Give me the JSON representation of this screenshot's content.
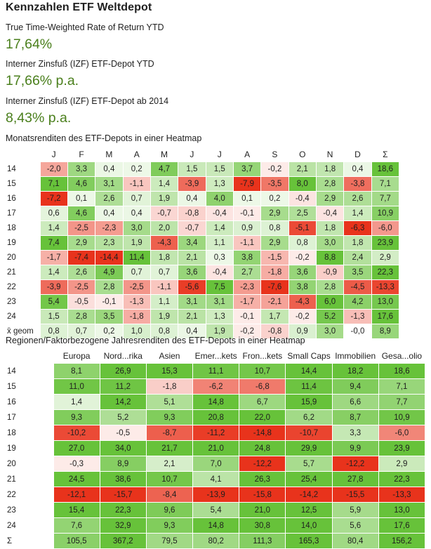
{
  "title": "Kennzahlen ETF Weltdepot",
  "metrics": [
    {
      "label": "True Time-Weighted Rate of Return YTD",
      "value": "17,64%"
    },
    {
      "label": "Interner Zinsfuß (IZF) ETF-Depot YTD",
      "value": "17,66% p.a."
    },
    {
      "label": "Interner Zinsfuß (IZF) ETF-Depot ab 2014",
      "value": "8,43% p.a."
    }
  ],
  "colors": {
    "positive_strong": "#67c23a",
    "positive_light": "#ffffff",
    "negative_strong": "#e8331c",
    "negative_light": "#ffffff",
    "value_text": "#4a7f1c"
  },
  "chart_data": [
    {
      "type": "heatmap",
      "title": "Monatsrenditen des ETF-Depots in einer Heatmap",
      "columns": [
        "J",
        "F",
        "M",
        "A",
        "M",
        "J",
        "J",
        "A",
        "S",
        "O",
        "N",
        "D",
        "Σ"
      ],
      "rows": [
        "14",
        "15",
        "16",
        "17",
        "18",
        "19",
        "20",
        "21",
        "22",
        "23",
        "24",
        "x̄ geom"
      ],
      "values": [
        [
          "-2,0",
          "3,3",
          "0,4",
          "0,2",
          "4,7",
          "1,5",
          "1,5",
          "3,7",
          "-0,2",
          "2,1",
          "1,8",
          "0,4",
          "18,6"
        ],
        [
          "7,1",
          "4,6",
          "3,1",
          "-1,1",
          "1,4",
          "-3,9",
          "1,3",
          "-7,9",
          "-3,5",
          "8,0",
          "2,8",
          "-3,8",
          "7,1"
        ],
        [
          "-7,2",
          "0,1",
          "2,6",
          "0,7",
          "1,9",
          "0,4",
          "4,0",
          "0,1",
          "0,2",
          "-0,4",
          "2,9",
          "2,6",
          "7,7"
        ],
        [
          "0,6",
          "4,6",
          "0,4",
          "0,4",
          "-0,7",
          "-0,8",
          "-0,4",
          "-0,1",
          "2,9",
          "2,5",
          "-0,4",
          "1,4",
          "10,9"
        ],
        [
          "1,4",
          "-2,5",
          "-2,3",
          "3,0",
          "2,0",
          "-0,7",
          "1,4",
          "0,9",
          "0,8",
          "-5,1",
          "1,8",
          "-6,3",
          "-6,0"
        ],
        [
          "7,4",
          "2,9",
          "2,3",
          "1,9",
          "-4,3",
          "3,4",
          "1,1",
          "-1,1",
          "2,9",
          "0,8",
          "3,0",
          "1,8",
          "23,9"
        ],
        [
          "-1,7",
          "-7,4",
          "-14,4",
          "11,4",
          "1,8",
          "2,1",
          "0,3",
          "3,8",
          "-1,5",
          "-0,2",
          "8,8",
          "2,4",
          "2,9"
        ],
        [
          "1,4",
          "2,6",
          "4,9",
          "0,7",
          "0,7",
          "3,6",
          "-0,4",
          "2,7",
          "-1,8",
          "3,6",
          "-0,9",
          "3,5",
          "22,3"
        ],
        [
          "-3,9",
          "-2,5",
          "2,8",
          "-2,5",
          "-1,1",
          "-5,6",
          "7,5",
          "-2,3",
          "-7,6",
          "3,8",
          "2,8",
          "-4,5",
          "-13,3"
        ],
        [
          "5,4",
          "-0,5",
          "-0,1",
          "-1,3",
          "1,1",
          "3,1",
          "3,1",
          "-1,7",
          "-2,1",
          "-4,3",
          "6,0",
          "4,2",
          "13,0"
        ],
        [
          "1,5",
          "2,8",
          "3,5",
          "-1,8",
          "1,9",
          "2,1",
          "1,3",
          "-0,1",
          "1,7",
          "-0,2",
          "5,2",
          "-1,3",
          "17,6"
        ],
        [
          "0,8",
          "0,7",
          "0,2",
          "1,0",
          "0,8",
          "0,4",
          "1,9",
          "-0,2",
          "-0,8",
          "0,9",
          "3,0",
          "-0,0",
          "8,9"
        ]
      ]
    },
    {
      "type": "heatmap",
      "title": "Regionen/Faktorbezogene Jahresrenditen des ETF-Depots in einer Heatmap",
      "columns": [
        "Europa",
        "Nord...rika",
        "Asien",
        "Emer...kets",
        "Fron...kets",
        "Small Caps",
        "Immobilien",
        "Gesa...olio"
      ],
      "rows": [
        "14",
        "15",
        "16",
        "17",
        "18",
        "19",
        "20",
        "21",
        "22",
        "23",
        "24",
        "Σ"
      ],
      "values": [
        [
          "8,1",
          "26,9",
          "15,3",
          "11,1",
          "10,7",
          "14,4",
          "18,2",
          "18,6"
        ],
        [
          "11,0",
          "11,2",
          "-1,8",
          "-6,2",
          "-6,8",
          "11,4",
          "9,4",
          "7,1"
        ],
        [
          "1,4",
          "14,2",
          "5,1",
          "14,8",
          "6,7",
          "15,9",
          "6,6",
          "7,7"
        ],
        [
          "9,3",
          "5,2",
          "9,3",
          "20,8",
          "22,0",
          "6,2",
          "8,7",
          "10,9"
        ],
        [
          "-10,2",
          "-0,5",
          "-8,7",
          "-11,2",
          "-14,8",
          "-10,7",
          "3,3",
          "-6,0"
        ],
        [
          "27,0",
          "34,0",
          "21,7",
          "21,0",
          "24,8",
          "29,9",
          "9,9",
          "23,9"
        ],
        [
          "-0,3",
          "8,9",
          "2,1",
          "7,0",
          "-12,2",
          "5,7",
          "-12,2",
          "2,9"
        ],
        [
          "24,5",
          "38,6",
          "10,7",
          "4,1",
          "26,3",
          "25,4",
          "27,8",
          "22,3"
        ],
        [
          "-12,1",
          "-15,7",
          "-8,4",
          "-13,9",
          "-15,8",
          "-14,2",
          "-15,5",
          "-13,3"
        ],
        [
          "15,4",
          "22,3",
          "9,6",
          "5,4",
          "21,0",
          "12,5",
          "5,9",
          "13,0"
        ],
        [
          "7,6",
          "32,9",
          "9,3",
          "14,8",
          "30,8",
          "14,0",
          "5,6",
          "17,6"
        ],
        [
          "105,5",
          "367,2",
          "79,5",
          "80,2",
          "111,3",
          "165,3",
          "80,4",
          "156,2"
        ]
      ]
    }
  ]
}
